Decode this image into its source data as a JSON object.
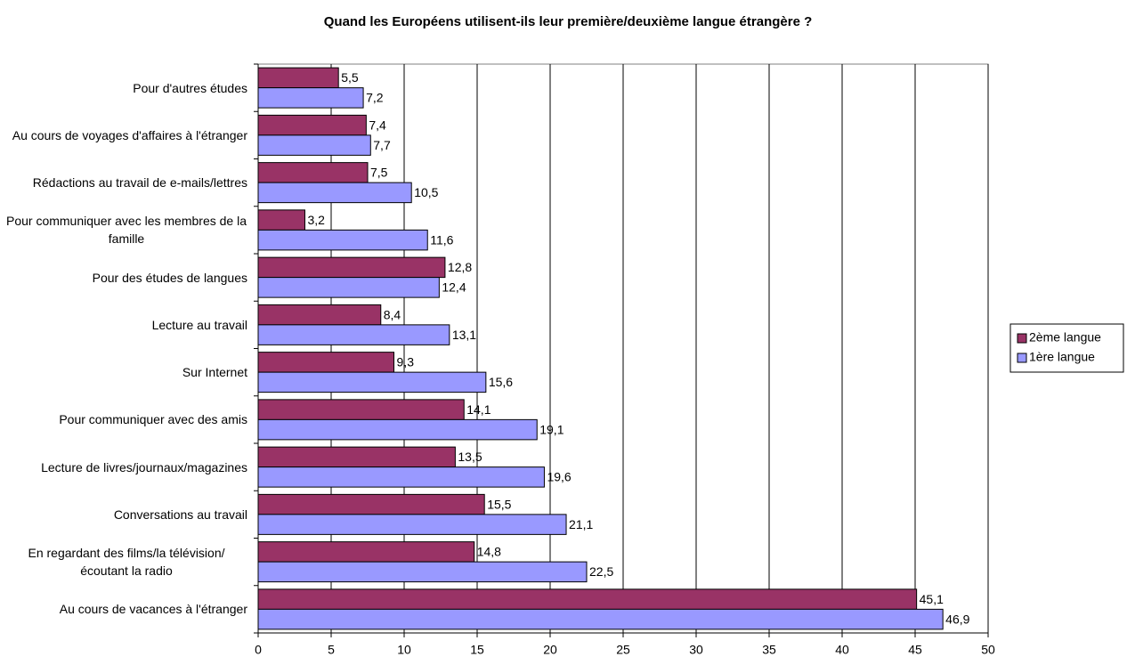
{
  "chart_data": {
    "type": "hbar",
    "title": "Quand les Européens utilisent-ils leur première/deuxième langue étrangère ?",
    "categories": [
      "Pour d'autres études",
      "Au cours de voyages d'affaires à l'étranger",
      "Rédactions au travail de e-mails/lettres",
      "Pour communiquer avec les membres de la famille",
      "Pour des études de langues",
      "Lecture au travail",
      "Sur Internet",
      "Pour communiquer avec des amis",
      "Lecture de livres/journaux/magazines",
      "Conversations au travail",
      "En regardant des films/la télévision/écoutant la radio",
      "Au cours de vacances à l'étranger"
    ],
    "series": [
      {
        "name": "2ème langue",
        "color": "#993366",
        "values": [
          5.5,
          7.4,
          7.5,
          3.2,
          12.8,
          8.4,
          9.3,
          14.1,
          13.5,
          15.5,
          14.8,
          45.1
        ],
        "value_labels": [
          "5,5",
          "7,4",
          "7,5",
          "3,2",
          "12,8",
          "8,4",
          "9,3",
          "14,1",
          "13,5",
          "15,5",
          "14,8",
          "45,1"
        ]
      },
      {
        "name": "1ère langue",
        "color": "#9999ff",
        "values": [
          7.2,
          7.7,
          10.5,
          11.6,
          12.4,
          13.1,
          15.6,
          19.1,
          19.6,
          21.1,
          22.5,
          46.9
        ],
        "value_labels": [
          "7,2",
          "7,7",
          "10,5",
          "11,6",
          "12,4",
          "13,1",
          "15,6",
          "19,1",
          "19,6",
          "21,1",
          "22,5",
          "46,9"
        ]
      }
    ],
    "xlim": [
      0,
      50
    ],
    "xticks": [
      0,
      5,
      10,
      15,
      20,
      25,
      30,
      35,
      40,
      45,
      50
    ],
    "grid": true,
    "legend": "right"
  }
}
